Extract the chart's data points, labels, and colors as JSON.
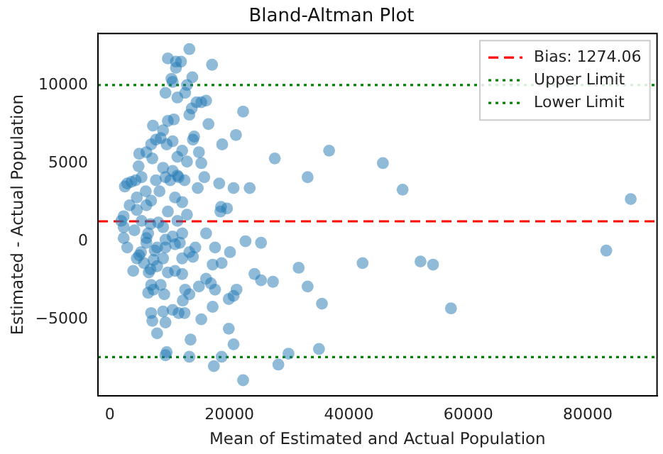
{
  "chart_data": {
    "type": "scatter",
    "title": "Bland-Altman Plot",
    "xlabel": "Mean of Estimated and Actual Population",
    "ylabel": "Estimated - Actual Population",
    "xlim": [
      -2000,
      91600
    ],
    "ylim": [
      -9900,
      13300
    ],
    "xticks": [
      0,
      20000,
      40000,
      60000,
      80000
    ],
    "yticks": [
      {
        "value": -5000,
        "label": "−5000"
      },
      0,
      5000,
      10000
    ],
    "grid": false,
    "legend": "top right",
    "marker": "circle",
    "ref_lines": [
      {
        "axis": "y",
        "value": 1274.06,
        "label": "Bias: 1274.06",
        "color": "#ff0000",
        "line_style": "dashed"
      },
      {
        "axis": "y",
        "value": 10000,
        "label": "Upper Limit",
        "color": "#008000",
        "line_style": "dotted"
      },
      {
        "axis": "y",
        "value": -7420,
        "label": "Lower Limit",
        "color": "#008000",
        "line_style": "dotted"
      }
    ],
    "series": [
      {
        "color": "#1f77b4",
        "x": [
          13300,
          9700,
          11050,
          11900,
          17100,
          11050,
          10300,
          10500,
          13800,
          12900,
          9300,
          11300,
          12600,
          14500,
          16100,
          15300,
          13300,
          13700,
          22300,
          16500,
          9700,
          10700,
          7200,
          8900,
          8500,
          7700,
          9500,
          6900,
          10500,
          14100,
          13900,
          21100,
          18800,
          12100,
          14900,
          4900,
          6100,
          7100,
          11300,
          27600,
          36700,
          45700,
          49000,
          33100,
          15300,
          12900,
          4800,
          8900,
          10500,
          11300,
          9300,
          7700,
          10100,
          5300,
          4300,
          15800,
          11500,
          12500,
          18300,
          20700,
          23400,
          14700,
          8300,
          6000,
          2900,
          3600,
          2500,
          4500,
          10900,
          12100,
          6900,
          6100,
          3300,
          18600,
          19600,
          18500,
          12900,
          9700,
          4500,
          2300,
          1900,
          5300,
          8100,
          6800,
          11300,
          8900,
          2300,
          4100,
          6400,
          16100,
          6100,
          12100,
          10500,
          9300,
          2300,
          6100,
          11700,
          7900,
          9300,
          14300,
          10900,
          17600,
          22700,
          25300,
          20100,
          2900,
          5200,
          4900,
          7500,
          4500,
          13300,
          13900,
          12100,
          7300,
          8900,
          5700,
          7900,
          6800,
          6500,
          3900,
          9700,
          10900,
          12100,
          17200,
          18700,
          24200,
          25300,
          27300,
          31600,
          42300,
          52000,
          54100,
          83100,
          87200,
          57100,
          33100,
          35500,
          16100,
          16900,
          17600,
          14900,
          21200,
          12600,
          13300,
          12200,
          6900,
          8500,
          9100,
          6400,
          7300,
          17200,
          20700,
          19900,
          15300,
          10500,
          11500,
          12500,
          8900,
          6900,
          7100,
          9300,
          7900,
          19900,
          20700,
          13500,
          9500,
          9300,
          13300,
          18700,
          17400,
          22300,
          28200,
          29900,
          35000
        ],
        "values": [
          12300,
          11700,
          11500,
          11500,
          11300,
          11100,
          10400,
          10200,
          10500,
          10000,
          9500,
          9200,
          9500,
          8900,
          9000,
          8900,
          8100,
          8500,
          8300,
          7500,
          7700,
          7800,
          7400,
          7100,
          6600,
          6500,
          6200,
          6200,
          6400,
          6700,
          6500,
          6800,
          6200,
          5800,
          5700,
          5600,
          5700,
          5300,
          5400,
          5300,
          5800,
          5000,
          3300,
          4100,
          5000,
          5100,
          4800,
          4700,
          4500,
          4200,
          4100,
          3900,
          3900,
          4100,
          3900,
          4100,
          4100,
          3900,
          3700,
          3400,
          3400,
          3400,
          3200,
          3200,
          3700,
          3800,
          3500,
          2800,
          2800,
          2500,
          2600,
          2300,
          2300,
          2200,
          2100,
          1900,
          1700,
          1900,
          2000,
          1600,
          1300,
          1300,
          1200,
          1100,
          1300,
          900,
          900,
          700,
          500,
          500,
          200,
          500,
          300,
          100,
          200,
          -100,
          -100,
          -400,
          -400,
          -400,
          -200,
          -400,
          0,
          -100,
          -700,
          -400,
          -700,
          -900,
          -600,
          -1100,
          -700,
          -1000,
          -1100,
          -1200,
          -1100,
          -1400,
          -1600,
          -1800,
          -2000,
          -1900,
          -2000,
          -1900,
          -2100,
          -1500,
          -1400,
          -2100,
          -2500,
          -2600,
          -1700,
          -1400,
          -1300,
          -1500,
          -600,
          2700,
          -4300,
          -2900,
          -4000,
          -2400,
          -2700,
          -3100,
          -2900,
          -3100,
          -3100,
          -3400,
          -3800,
          -2800,
          -2800,
          -3400,
          -3300,
          -3100,
          -4200,
          -3500,
          -3700,
          -5000,
          -4400,
          -4600,
          -4600,
          -4500,
          -4600,
          -5100,
          -5200,
          -5900,
          -5600,
          -6600,
          -6300,
          -7100,
          -7300,
          -7400,
          -7400,
          -8000,
          -8900,
          -7900,
          -7200,
          -6900
        ]
      }
    ]
  }
}
